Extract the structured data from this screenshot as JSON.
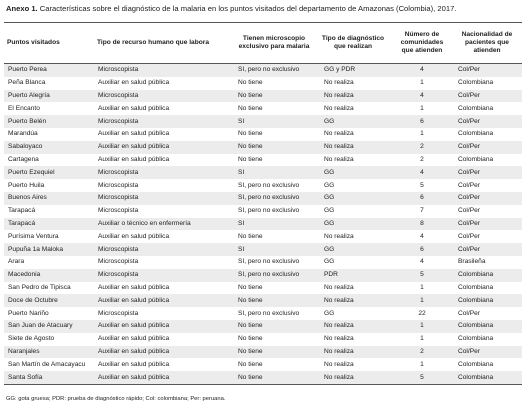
{
  "header": {
    "label": "Anexo 1.",
    "title": "Características sobre el diagnóstico de la malaria en los puntos visitados del departamento de Amazonas (Colombia), 2017."
  },
  "table": {
    "columns": [
      "Puntos visitados",
      "Tipo de recurso humano que labora",
      "Tienen microscopio exclusivo para malaria",
      "Tipo de diagnóstico que realizan",
      "Número de comunidades que atienden",
      "Nacionalidad de pacientes que atienden"
    ],
    "rows": [
      [
        "Puerto Perea",
        "Microscopista",
        "SI, pero no exclusivo",
        "GG y PDR",
        4,
        "Col/Per"
      ],
      [
        "Peña Blanca",
        "Auxiliar en salud pública",
        "No tiene",
        "No realiza",
        1,
        "Colombiana"
      ],
      [
        "Puerto Alegría",
        "Microscopista",
        "No tiene",
        "No realiza",
        4,
        "Col/Per"
      ],
      [
        "El Encanto",
        "Auxiliar en salud pública",
        "No tiene",
        "No realiza",
        1,
        "Colombiana"
      ],
      [
        "Puerto Belén",
        "Microscopista",
        "SI",
        "GG",
        6,
        "Col/Per"
      ],
      [
        "Marandúa",
        "Auxiliar en salud pública",
        "No tiene",
        "No realiza",
        1,
        "Colombiana"
      ],
      [
        "Sabaloyaco",
        "Auxiliar en salud pública",
        "No tiene",
        "No realiza",
        2,
        "Col/Per"
      ],
      [
        "Cartagena",
        "Auxiliar en salud pública",
        "No tiene",
        "No realiza",
        2,
        "Colombiana"
      ],
      [
        "Puerto Ezequiel",
        "Microscopista",
        "SI",
        "GG",
        4,
        "Col/Per"
      ],
      [
        "Puerto Huila",
        "Microscopista",
        "SI, pero no exclusivo",
        "GG",
        5,
        "Col/Per"
      ],
      [
        "Buenos Aires",
        "Microscopista",
        "SI, pero no exclusivo",
        "GG",
        6,
        "Col/Per"
      ],
      [
        "Tarapacá",
        "Microscopista",
        "SI, pero no exclusivo",
        "GG",
        7,
        "Col/Per"
      ],
      [
        "Tarapacá",
        "Auxiliar o técnico en enfermería",
        "SI",
        "GG",
        8,
        "Col/Per"
      ],
      [
        "Purísima Ventura",
        "Auxiliar en salud pública",
        "No tiene",
        "No realiza",
        4,
        "Col/Per"
      ],
      [
        "Pupuña 1a Maloka",
        "Microscopista",
        "SI",
        "GG",
        6,
        "Col/Per"
      ],
      [
        "Arara",
        "Microscopista",
        "SI, pero no exclusivo",
        "GG",
        4,
        "Brasileña"
      ],
      [
        "Macedonia",
        "Microscopista",
        "SI, pero no exclusivo",
        "PDR",
        5,
        "Colombiana"
      ],
      [
        "San Pedro de Tipisca",
        "Auxiliar en salud pública",
        "No tiene",
        "No realiza",
        1,
        "Colombiana"
      ],
      [
        "Doce de Octubre",
        "Auxiliar en salud pública",
        "No tiene",
        "No realiza",
        1,
        "Colombiana"
      ],
      [
        "Puerto Nariño",
        "Microscopista",
        "SI, pero no exclusivo",
        "GG",
        22,
        "Col/Per"
      ],
      [
        "San Juan de Atacuary",
        "Auxiliar en salud pública",
        "No tiene",
        "No realiza",
        1,
        "Colombiana"
      ],
      [
        "Siete de Agosto",
        "Auxiliar en salud pública",
        "No tiene",
        "No realiza",
        1,
        "Colombiana"
      ],
      [
        "Naranjales",
        "Auxiliar en salud pública",
        "No tiene",
        "No realiza",
        2,
        "Col/Per"
      ],
      [
        "San Martín de Amacayacu",
        "Auxiliar en salud pública",
        "No tiene",
        "No realiza",
        1,
        "Colombiana"
      ],
      [
        "Santa Sofía",
        "Auxiliar en salud pública",
        "No tiene",
        "No realiza",
        5,
        "Colombiana"
      ]
    ]
  },
  "footnote": "GG: gota gruesa; PDR: prueba de diagnóstico rápido; Col: colombiana; Per: peruana."
}
